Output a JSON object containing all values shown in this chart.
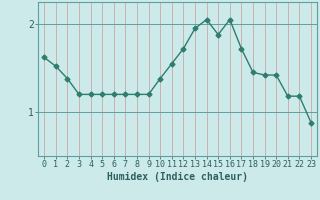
{
  "xlabel": "Humidex (Indice chaleur)",
  "x_values": [
    0,
    1,
    2,
    3,
    4,
    5,
    6,
    7,
    8,
    9,
    10,
    11,
    12,
    13,
    14,
    15,
    16,
    17,
    18,
    19,
    20,
    21,
    22,
    23
  ],
  "y_values": [
    1.62,
    1.52,
    1.38,
    1.2,
    1.2,
    1.2,
    1.2,
    1.2,
    1.2,
    1.2,
    1.38,
    1.55,
    1.72,
    1.95,
    2.05,
    1.88,
    2.05,
    1.72,
    1.45,
    1.42,
    1.42,
    1.18,
    1.18,
    0.88
  ],
  "line_color": "#2e7d6e",
  "marker": "D",
  "markersize": 2.5,
  "linewidth": 1.0,
  "background_color": "#cceaea",
  "vgrid_color": "#cc9999",
  "hgrid_color": "#5f9ea0",
  "yticks": [
    1,
    2
  ],
  "ylim": [
    0.5,
    2.25
  ],
  "xlim": [
    -0.5,
    23.5
  ],
  "label_color": "#2e5f5f",
  "xlabel_fontsize": 7,
  "tick_fontsize": 6,
  "ylabel_fontsize": 7
}
